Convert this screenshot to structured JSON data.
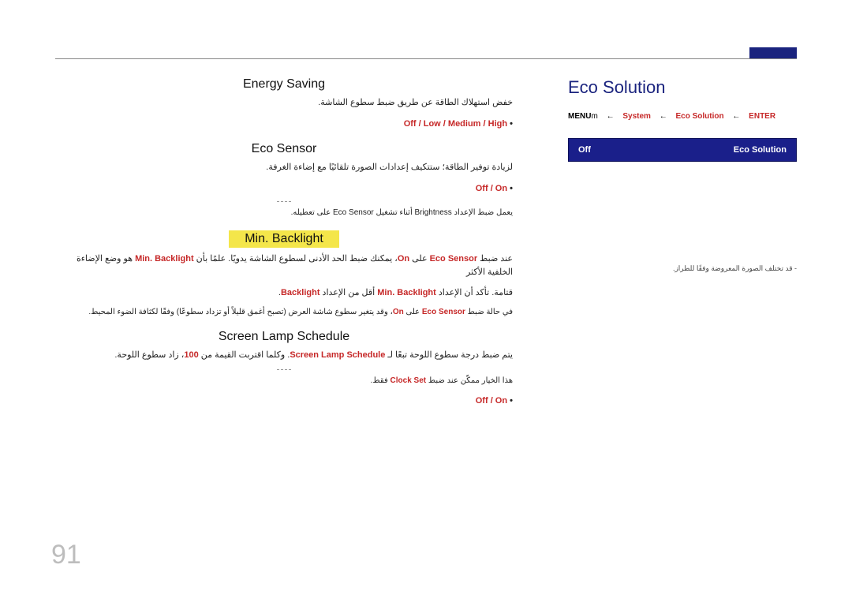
{
  "colors": {
    "accent": "#1a237e",
    "menu_bg": "#1a1f8a",
    "highlight_bg": "#f4e64a",
    "page_num": "#bdbdbd",
    "redword": "#c62828",
    "rule": "#888"
  },
  "page_number": "91",
  "right": {
    "title": "Eco Solution",
    "path": {
      "p4": "MENU",
      "p4m": "m",
      "arrow": "←",
      "p3": "System",
      "p2": "Eco Solution",
      "p1": "ENTER"
    },
    "menu": {
      "left": "Eco Solution",
      "right": "Off"
    },
    "footnote": "- قد تختلف الصورة المعروضة وفقًا للطراز."
  },
  "sections": {
    "energy": {
      "title": "Energy Saving",
      "body": "خفض استهلاك الطاقة عن طريق ضبط سطوع الشاشة.",
      "bullet": "Off / Low / Medium / High"
    },
    "sensor": {
      "title": "Eco Sensor",
      "body1": "لزيادة توفير الطاقة؛ ستتكيف إعدادات الصورة تلقائيًا مع إضاءة الغرفة.",
      "bullet1": "Off / On",
      "note": "يعمل ضبط الإعداد Brightness أثناء تشغيل Eco Sensor على تعطيله."
    },
    "minb": {
      "title": "Min. Backlight",
      "body1a": "عند ضبط ",
      "body1_r1": "Eco Sensor",
      "body1b": " على ",
      "body1_r2": "On",
      "body1c": "، يمكنك ضبط الحد الأدنى لسطوع الشاشة يدويًا. علمًا بأن ",
      "body1_r3": "Min. Backlight",
      "body1d": " هو وضع الإضاءة الخلفية الأكثر",
      "body2a": "قتامة. تأكد أن الإعداد ",
      "body2_r1": "Min. Backlight",
      "body2b": " أقل من الإعداد ",
      "body2_r2": "Backlight",
      "body2c": ".",
      "body3a": "في حالة ضبط ",
      "body3_r1": "Eco Sensor",
      "body3b": " على ",
      "body3_r2": "On",
      "body3c": "، وقد يتغير سطوع شاشة العرض (تصبح أغمق قليلاً أو تزداد سطوعًا) وفقًا لكثافة الضوء المحيط."
    },
    "lamp": {
      "title": "Screen Lamp Schedule",
      "body1a": "يتم ضبط درجة سطوع اللوحة تبعًا لـ ",
      "body1_r1": "Screen Lamp Schedule",
      "body1b": ". وكلما اقتربت القيمة من ",
      "body1_r2": "100",
      "body1c": "، زاد سطوع اللوحة.",
      "note_a": "هذا الخيار ممكّن عند ضبط ",
      "note_r1": "Clock Set",
      "note_b": " فقط.",
      "bullet": "Off / On"
    }
  }
}
